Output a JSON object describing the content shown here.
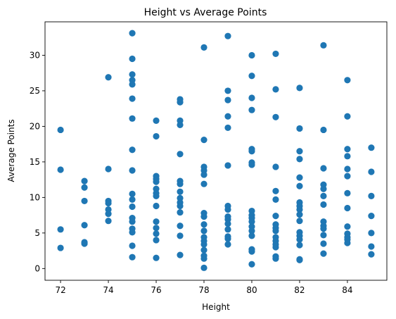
{
  "chart_data": {
    "type": "scatter",
    "title": "Height vs Average Points",
    "xlabel": "Height",
    "ylabel": "Average Points",
    "xlim": [
      71.35,
      85.65
    ],
    "ylim": [
      -1.65,
      34.7
    ],
    "xticks": [
      72,
      74,
      76,
      78,
      80,
      82,
      84
    ],
    "yticks": [
      0,
      5,
      10,
      15,
      20,
      25,
      30
    ],
    "grid": false,
    "marker_color": "#1f77b4",
    "points": [
      [
        72,
        19.5
      ],
      [
        72,
        13.9
      ],
      [
        72,
        5.5
      ],
      [
        72,
        2.9
      ],
      [
        73,
        12.3
      ],
      [
        73,
        11.4
      ],
      [
        73,
        9.5
      ],
      [
        73,
        6.1
      ],
      [
        73,
        3.7
      ],
      [
        73,
        3.5
      ],
      [
        74,
        26.9
      ],
      [
        74,
        14.0
      ],
      [
        74,
        9.5
      ],
      [
        74,
        9.2
      ],
      [
        74,
        8.3
      ],
      [
        74,
        7.7
      ],
      [
        74,
        6.7
      ],
      [
        75,
        33.1
      ],
      [
        75,
        29.5
      ],
      [
        75,
        27.3
      ],
      [
        75,
        26.5
      ],
      [
        75,
        25.9
      ],
      [
        75,
        23.9
      ],
      [
        75,
        21.1
      ],
      [
        75,
        16.7
      ],
      [
        75,
        13.8
      ],
      [
        75,
        10.5
      ],
      [
        75,
        9.7
      ],
      [
        75,
        8.7
      ],
      [
        75,
        7.1
      ],
      [
        75,
        6.6
      ],
      [
        75,
        5.6
      ],
      [
        75,
        5.1
      ],
      [
        75,
        3.2
      ],
      [
        75,
        1.6
      ],
      [
        76,
        20.8
      ],
      [
        76,
        18.6
      ],
      [
        76,
        13.0
      ],
      [
        76,
        12.6
      ],
      [
        76,
        12.2
      ],
      [
        76,
        11.2
      ],
      [
        76,
        10.6
      ],
      [
        76,
        10.2
      ],
      [
        76,
        8.8
      ],
      [
        76,
        6.6
      ],
      [
        76,
        5.7
      ],
      [
        76,
        4.9
      ],
      [
        76,
        4.0
      ],
      [
        76,
        1.5
      ],
      [
        77,
        23.8
      ],
      [
        77,
        23.4
      ],
      [
        77,
        20.8
      ],
      [
        77,
        20.2
      ],
      [
        77,
        16.1
      ],
      [
        77,
        12.3
      ],
      [
        77,
        11.9
      ],
      [
        77,
        10.8
      ],
      [
        77,
        9.9
      ],
      [
        77,
        9.3
      ],
      [
        77,
        8.8
      ],
      [
        77,
        7.9
      ],
      [
        77,
        6.0
      ],
      [
        77,
        4.6
      ],
      [
        77,
        1.9
      ],
      [
        78,
        31.1
      ],
      [
        78,
        18.1
      ],
      [
        78,
        14.3
      ],
      [
        78,
        13.8
      ],
      [
        78,
        13.2
      ],
      [
        78,
        11.9
      ],
      [
        78,
        7.8
      ],
      [
        78,
        7.3
      ],
      [
        78,
        6.2
      ],
      [
        78,
        5.3
      ],
      [
        78,
        4.4
      ],
      [
        78,
        3.9
      ],
      [
        78,
        3.4
      ],
      [
        78,
        2.6
      ],
      [
        78,
        1.8
      ],
      [
        78,
        1.4
      ],
      [
        78,
        0.1
      ],
      [
        79,
        32.7
      ],
      [
        79,
        25.0
      ],
      [
        79,
        23.7
      ],
      [
        79,
        21.4
      ],
      [
        79,
        19.8
      ],
      [
        79,
        14.5
      ],
      [
        79,
        8.8
      ],
      [
        79,
        8.3
      ],
      [
        79,
        7.3
      ],
      [
        79,
        6.9
      ],
      [
        79,
        6.3
      ],
      [
        79,
        5.5
      ],
      [
        79,
        4.5
      ],
      [
        79,
        4.2
      ],
      [
        79,
        3.4
      ],
      [
        80,
        30.0
      ],
      [
        80,
        27.1
      ],
      [
        80,
        24.0
      ],
      [
        80,
        22.3
      ],
      [
        80,
        16.8
      ],
      [
        80,
        16.5
      ],
      [
        80,
        14.9
      ],
      [
        80,
        14.6
      ],
      [
        80,
        8.1
      ],
      [
        80,
        7.5
      ],
      [
        80,
        7.1
      ],
      [
        80,
        6.6
      ],
      [
        80,
        5.9
      ],
      [
        80,
        5.3
      ],
      [
        80,
        4.6
      ],
      [
        80,
        2.7
      ],
      [
        80,
        2.4
      ],
      [
        80,
        0.6
      ],
      [
        81,
        30.2
      ],
      [
        81,
        25.2
      ],
      [
        81,
        21.3
      ],
      [
        81,
        14.3
      ],
      [
        81,
        10.9
      ],
      [
        81,
        9.7
      ],
      [
        81,
        7.4
      ],
      [
        81,
        6.2
      ],
      [
        81,
        5.7
      ],
      [
        81,
        5.3
      ],
      [
        81,
        4.4
      ],
      [
        81,
        3.9
      ],
      [
        81,
        3.4
      ],
      [
        81,
        3.0
      ],
      [
        81,
        1.7
      ],
      [
        81,
        1.4
      ],
      [
        82,
        25.4
      ],
      [
        82,
        19.7
      ],
      [
        82,
        16.5
      ],
      [
        82,
        15.4
      ],
      [
        82,
        12.8
      ],
      [
        82,
        11.6
      ],
      [
        82,
        9.3
      ],
      [
        82,
        8.8
      ],
      [
        82,
        8.3
      ],
      [
        82,
        7.6
      ],
      [
        82,
        6.7
      ],
      [
        82,
        5.1
      ],
      [
        82,
        4.6
      ],
      [
        82,
        4.1
      ],
      [
        82,
        3.3
      ],
      [
        82,
        1.3
      ],
      [
        82,
        1.2
      ],
      [
        83,
        31.4
      ],
      [
        83,
        19.5
      ],
      [
        83,
        14.1
      ],
      [
        83,
        11.8
      ],
      [
        83,
        11.2
      ],
      [
        83,
        10.2
      ],
      [
        83,
        9.0
      ],
      [
        83,
        6.6
      ],
      [
        83,
        6.0
      ],
      [
        83,
        5.6
      ],
      [
        83,
        4.7
      ],
      [
        83,
        3.5
      ],
      [
        83,
        2.1
      ],
      [
        84,
        26.5
      ],
      [
        84,
        21.4
      ],
      [
        84,
        16.8
      ],
      [
        84,
        15.8
      ],
      [
        84,
        14.0
      ],
      [
        84,
        13.0
      ],
      [
        84,
        10.6
      ],
      [
        84,
        8.5
      ],
      [
        84,
        5.9
      ],
      [
        84,
        4.9
      ],
      [
        84,
        4.4
      ],
      [
        84,
        4.1
      ],
      [
        84,
        3.6
      ],
      [
        85,
        17.0
      ],
      [
        85,
        13.6
      ],
      [
        85,
        10.2
      ],
      [
        85,
        7.4
      ],
      [
        85,
        5.0
      ],
      [
        85,
        3.1
      ],
      [
        85,
        2.0
      ]
    ]
  }
}
